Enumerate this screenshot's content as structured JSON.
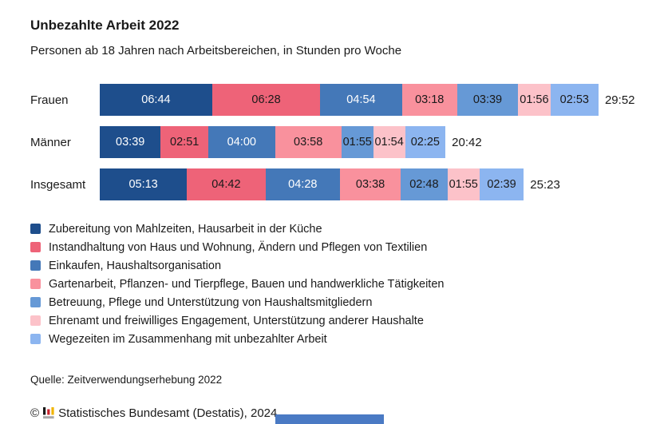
{
  "header": {
    "title": "Unbezahlte Arbeit 2022",
    "subtitle": "Personen ab 18 Jahren nach Arbeitsbereichen, in Stunden pro Woche"
  },
  "chart_data": {
    "type": "bar",
    "orientation": "horizontal",
    "stacked": true,
    "unit": "Stunden pro Woche (hh:mm)",
    "categories": [
      "Frauen",
      "Männer",
      "Insgesamt"
    ],
    "series": [
      {
        "name": "Zubereitung von Mahlzeiten, Hausarbeit in der Küche",
        "color": "#1e4e8c",
        "text_color": "#ffffff",
        "values": [
          "06:44",
          "03:39",
          "05:13"
        ],
        "minutes": [
          404,
          219,
          313
        ]
      },
      {
        "name": "Instandhaltung von Haus und Wohnung, Ändern und Pflegen von Textilien",
        "color": "#ee6378",
        "text_color": "#1a1a1a",
        "values": [
          "06:28",
          "02:51",
          "04:42"
        ],
        "minutes": [
          388,
          171,
          282
        ]
      },
      {
        "name": "Einkaufen, Haushaltsorganisation",
        "color": "#4478b8",
        "text_color": "#ffffff",
        "values": [
          "04:54",
          "04:00",
          "04:28"
        ],
        "minutes": [
          294,
          240,
          268
        ]
      },
      {
        "name": "Gartenarbeit, Pflanzen- und Tierpflege, Bauen und handwerkliche Tätigkeiten",
        "color": "#f9919d",
        "text_color": "#1a1a1a",
        "values": [
          "03:18",
          "03:58",
          "03:38"
        ],
        "minutes": [
          198,
          238,
          218
        ]
      },
      {
        "name": "Betreuung, Pflege und Unterstützung von Haushaltsmitgliedern",
        "color": "#6699d6",
        "text_color": "#1a1a1a",
        "values": [
          "03:39",
          "01:55",
          "02:48"
        ],
        "minutes": [
          219,
          115,
          168
        ]
      },
      {
        "name": "Ehrenamt und freiwilliges Engagement, Unterstützung anderer Haushalte",
        "color": "#fcc2c9",
        "text_color": "#1a1a1a",
        "values": [
          "01:56",
          "01:54",
          "01:55"
        ],
        "minutes": [
          116,
          114,
          115
        ]
      },
      {
        "name": "Wegezeiten im Zusammenhang mit unbezahlter Arbeit",
        "color": "#8cb5f0",
        "text_color": "#1a1a1a",
        "values": [
          "02:53",
          "02:25",
          "02:39"
        ],
        "minutes": [
          173,
          145,
          159
        ]
      }
    ],
    "totals": [
      "29:52",
      "20:42",
      "25:23"
    ],
    "total_minutes": [
      1792,
      1242,
      1523
    ],
    "max_minutes": 1792,
    "legend_position": "bottom",
    "grid": false
  },
  "footer": {
    "source": "Quelle: Zeitverwendungserhebung 2022",
    "copyright_symbol": "©",
    "copyright": "Statistisches Bundesamt (Destatis), 2024",
    "logo_icon": "destatis-bar-chart-icon",
    "logo_colors": {
      "black": "#1a1a1a",
      "red": "#c9242e",
      "yellow": "#f0b400",
      "gray": "#a8a8a8"
    }
  }
}
